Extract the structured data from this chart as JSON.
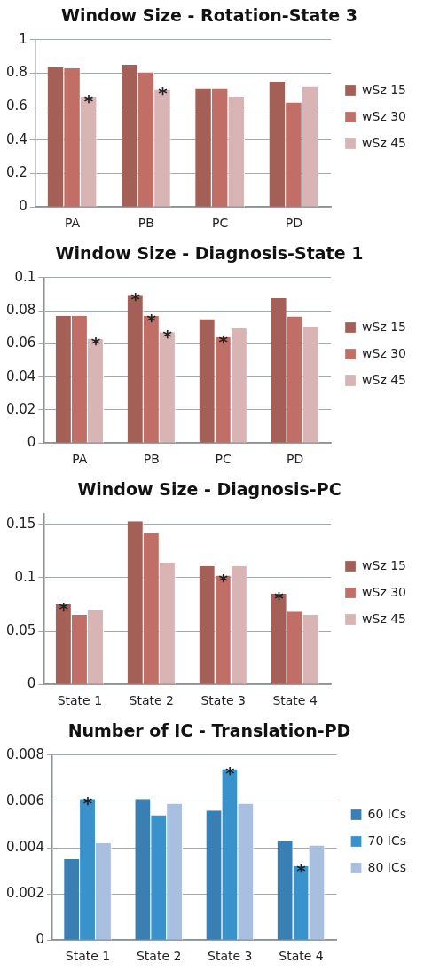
{
  "chart_data": [
    {
      "type": "bar",
      "title": "Window Size - Rotation-State 3",
      "categories": [
        "PA",
        "PB",
        "PC",
        "PD"
      ],
      "series": [
        {
          "name": "wSz 15",
          "color": "#a45f57",
          "values": [
            0.835,
            0.85,
            0.71,
            0.75
          ]
        },
        {
          "name": "wSz 30",
          "color": "#c06e66",
          "values": [
            0.83,
            0.805,
            0.71,
            0.625
          ]
        },
        {
          "name": "wSz 45",
          "color": "#d8b4b5",
          "values": [
            0.66,
            0.705,
            0.66,
            0.72
          ],
          "value_labels": [
            "*",
            "*",
            null,
            null
          ]
        }
      ],
      "ylim": [
        0,
        1
      ],
      "yticks": [
        0,
        0.2,
        0.4,
        0.6,
        0.8,
        1
      ],
      "grid": "y",
      "legend": "right"
    },
    {
      "type": "bar",
      "title": "Window Size - Diagnosis-State 1",
      "categories": [
        "PA",
        "PB",
        "PC",
        "PD"
      ],
      "series": [
        {
          "name": "wSz 15",
          "color": "#a45f57",
          "values": [
            0.077,
            0.0895,
            0.075,
            0.0875
          ],
          "value_labels": [
            null,
            "*",
            null,
            null
          ]
        },
        {
          "name": "wSz 30",
          "color": "#c06e66",
          "values": [
            0.077,
            0.077,
            0.064,
            0.0765
          ],
          "value_labels": [
            null,
            "*",
            "*",
            null
          ]
        },
        {
          "name": "wSz 45",
          "color": "#d8b4b5",
          "values": [
            0.063,
            0.067,
            0.0695,
            0.0705
          ],
          "value_labels": [
            "*",
            "*",
            null,
            null
          ]
        }
      ],
      "ylim": [
        0,
        0.1
      ],
      "yticks": [
        0,
        0.02,
        0.04,
        0.06,
        0.08,
        0.1
      ],
      "grid": "y",
      "legend": "right"
    },
    {
      "type": "bar",
      "title": "Window Size - Diagnosis-PC",
      "categories": [
        "State 1",
        "State 2",
        "State 3",
        "State 4"
      ],
      "series": [
        {
          "name": "wSz 15",
          "color": "#a45f57",
          "values": [
            0.075,
            0.153,
            0.111,
            0.085
          ],
          "value_labels": [
            "*",
            null,
            null,
            "*"
          ]
        },
        {
          "name": "wSz 30",
          "color": "#c06e66",
          "values": [
            0.065,
            0.142,
            0.102,
            0.069
          ],
          "value_labels": [
            null,
            null,
            "*",
            null
          ]
        },
        {
          "name": "wSz 45",
          "color": "#d8b4b5",
          "values": [
            0.07,
            0.114,
            0.111,
            0.065
          ]
        }
      ],
      "ylim": [
        0,
        0.16
      ],
      "yticks": [
        0,
        0.05,
        0.1,
        0.15
      ],
      "grid": "y",
      "legend": "right"
    },
    {
      "type": "bar",
      "title": "Number of IC - Translation-PD",
      "categories": [
        "State 1",
        "State 2",
        "State 3",
        "State 4"
      ],
      "series": [
        {
          "name": "60 ICs",
          "color": "#3a7fb3",
          "values": [
            0.0035,
            0.0061,
            0.0056,
            0.0043
          ]
        },
        {
          "name": "70 ICs",
          "color": "#3a92cc",
          "values": [
            0.0061,
            0.0054,
            0.0074,
            0.0032
          ],
          "value_labels": [
            "*",
            null,
            "*",
            "*"
          ]
        },
        {
          "name": "80 ICs",
          "color": "#a8bfdf",
          "values": [
            0.0042,
            0.0059,
            0.0059,
            0.0041
          ]
        }
      ],
      "ylim": [
        0,
        0.008
      ],
      "yticks": [
        0,
        0.002,
        0.004,
        0.006,
        0.008
      ],
      "grid": "y",
      "legend": "right"
    }
  ]
}
